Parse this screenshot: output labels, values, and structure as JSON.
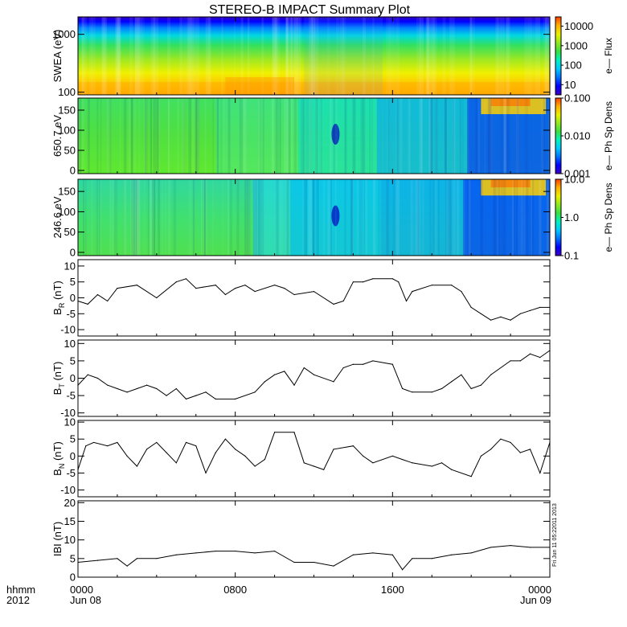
{
  "title": "STEREO-B IMPACT Summary Plot",
  "time_axis": {
    "row1_label": "hhmm",
    "row2_label": "2012",
    "ticks": [
      {
        "hour": 0,
        "label": "0000",
        "sub": "Jun 08"
      },
      {
        "hour": 8,
        "label": "0800",
        "sub": ""
      },
      {
        "hour": 16,
        "label": "1600",
        "sub": ""
      },
      {
        "hour": 24,
        "label": "0000",
        "sub": "Jun 09"
      }
    ],
    "range_hours": [
      0,
      24
    ]
  },
  "side_stamp": "Fri Jun 11 05:22011 2013",
  "colors": {
    "colormap": [
      "#3c00c8",
      "#0000ff",
      "#0070ff",
      "#00c8ff",
      "#00f0c0",
      "#38e040",
      "#90e820",
      "#e8f000",
      "#ffb000",
      "#ff4000"
    ]
  },
  "chart_data": [
    {
      "type": "heatmap",
      "ylabel": "SWEA (eV)",
      "y_scale": "log",
      "ylim": [
        90,
        2000
      ],
      "yticks": [
        {
          "v": 100,
          "label": "100"
        },
        {
          "v": 1000,
          "label": "1000"
        }
      ],
      "colorbar_label": "e— Flux",
      "colorbar_scale": "log",
      "colorbar_range": [
        3,
        30000
      ],
      "colorbar_ticks": [
        {
          "v": 10,
          "label": "10"
        },
        {
          "v": 100,
          "label": "100"
        },
        {
          "v": 1000,
          "label": "1000"
        },
        {
          "v": 10000,
          "label": "10000"
        }
      ]
    },
    {
      "type": "heatmap",
      "ylabel": "650.7 eV",
      "ylim": [
        -8,
        180
      ],
      "yticks": [
        {
          "v": 0,
          "label": "0"
        },
        {
          "v": 50,
          "label": "50"
        },
        {
          "v": 100,
          "label": "100"
        },
        {
          "v": 150,
          "label": "150"
        }
      ],
      "colorbar_label": "e— Ph Sp Dens",
      "colorbar_scale": "log",
      "colorbar_range": [
        0.001,
        0.1
      ],
      "colorbar_ticks": [
        {
          "v": 0.001,
          "label": "0.001"
        },
        {
          "v": 0.01,
          "label": "0.010"
        },
        {
          "v": 0.1,
          "label": "0.100"
        }
      ]
    },
    {
      "type": "heatmap",
      "ylabel": "246.6 eV",
      "ylim": [
        -8,
        180
      ],
      "yticks": [
        {
          "v": 0,
          "label": "0"
        },
        {
          "v": 50,
          "label": "50"
        },
        {
          "v": 100,
          "label": "100"
        },
        {
          "v": 150,
          "label": "150"
        }
      ],
      "colorbar_label": "e— Ph Sp Dens",
      "colorbar_scale": "log",
      "colorbar_range": [
        0.1,
        10
      ],
      "colorbar_ticks": [
        {
          "v": 0.1,
          "label": "0.1"
        },
        {
          "v": 1,
          "label": "1.0"
        },
        {
          "v": 10,
          "label": "10.0"
        }
      ]
    },
    {
      "type": "line",
      "ylabel_main": "B",
      "ylabel_sub": "R",
      "ylabel_unit": " (nT)",
      "ylim": [
        -12,
        12
      ],
      "yticks": [
        {
          "v": -10,
          "label": "-10"
        },
        {
          "v": -5,
          "label": "-5"
        },
        {
          "v": 0,
          "label": "0"
        },
        {
          "v": 5,
          "label": "5"
        },
        {
          "v": 10,
          "label": "10"
        }
      ],
      "x": [
        0,
        0.5,
        1,
        1.5,
        2,
        3,
        4,
        5,
        5.5,
        6,
        7,
        7.5,
        8,
        8.5,
        9,
        10,
        10.5,
        11,
        12,
        13,
        13.5,
        14,
        14.5,
        15,
        16,
        16.3,
        16.7,
        17,
        18,
        19,
        19.5,
        20,
        20.5,
        21,
        21.5,
        22,
        22.5,
        23,
        23.5,
        24
      ],
      "y": [
        -1,
        -2,
        1,
        -1,
        3,
        4,
        0,
        5,
        6,
        3,
        4,
        1,
        3,
        4,
        2,
        4,
        3,
        1,
        2,
        -2,
        -1,
        5,
        5,
        6,
        6,
        5,
        -1,
        2,
        4,
        4,
        2,
        -3,
        -5,
        -7,
        -6,
        -7,
        -5,
        -4,
        -3,
        -3
      ]
    },
    {
      "type": "line",
      "ylabel_main": "B",
      "ylabel_sub": "T",
      "ylabel_unit": " (nT)",
      "ylim": [
        -11,
        11
      ],
      "yticks": [
        {
          "v": -10,
          "label": "-10"
        },
        {
          "v": -5,
          "label": "-5"
        },
        {
          "v": 0,
          "label": "0"
        },
        {
          "v": 5,
          "label": "5"
        },
        {
          "v": 10,
          "label": "10"
        }
      ],
      "x": [
        0,
        0.5,
        1,
        1.5,
        2,
        2.5,
        3,
        3.5,
        4,
        4.5,
        5,
        5.5,
        6,
        6.5,
        7,
        8,
        9,
        9.5,
        10,
        10.5,
        11,
        11.5,
        12,
        13,
        13.5,
        14,
        14.5,
        15,
        16,
        16.5,
        17,
        18,
        18.5,
        19,
        19.5,
        20,
        20.5,
        21,
        22,
        22.5,
        23,
        23.5,
        24
      ],
      "y": [
        -2,
        1,
        0,
        -2,
        -3,
        -4,
        -3,
        -2,
        -3,
        -5,
        -3,
        -6,
        -5,
        -4,
        -6,
        -6,
        -4,
        -1,
        1,
        2,
        -2,
        3,
        1,
        -1,
        3,
        4,
        4,
        5,
        4,
        -3,
        -4,
        -4,
        -3,
        -1,
        1,
        -3,
        -2,
        1,
        5,
        5,
        7,
        6,
        8
      ]
    },
    {
      "type": "line",
      "ylabel_main": "B",
      "ylabel_sub": "N",
      "ylabel_unit": " (nT)",
      "ylim": [
        -12,
        10.5
      ],
      "yticks": [
        {
          "v": -10,
          "label": "-10"
        },
        {
          "v": -5,
          "label": "-5"
        },
        {
          "v": 0,
          "label": "0"
        },
        {
          "v": 5,
          "label": "5"
        },
        {
          "v": 10,
          "label": "10"
        }
      ],
      "x": [
        0,
        0.4,
        0.8,
        1.5,
        2,
        2.5,
        3,
        3.5,
        4,
        4.5,
        5,
        5.5,
        6,
        6.5,
        7,
        7.5,
        8,
        8.5,
        9,
        9.5,
        10,
        11,
        11.5,
        12,
        12.5,
        13,
        14,
        14.5,
        15,
        16,
        16.5,
        17,
        18,
        18.5,
        19,
        20,
        20.5,
        21,
        21.5,
        22,
        22.5,
        23,
        23.5,
        24
      ],
      "y": [
        -4,
        3,
        4,
        3,
        4,
        0,
        -3,
        2,
        4,
        1,
        -2,
        4,
        3,
        -5,
        1,
        5,
        2,
        0,
        -3,
        -1,
        7,
        7,
        -2,
        -3,
        -4,
        2,
        3,
        0,
        -2,
        0,
        -1,
        -2,
        -3,
        -2,
        -4,
        -6,
        0,
        2,
        5,
        4,
        1,
        2,
        -5,
        4
      ]
    },
    {
      "type": "line",
      "ylabel": "IBI (nT)",
      "ylim": [
        0,
        20.5
      ],
      "yticks": [
        {
          "v": 0,
          "label": "0"
        },
        {
          "v": 5,
          "label": "5"
        },
        {
          "v": 10,
          "label": "10"
        },
        {
          "v": 15,
          "label": "15"
        },
        {
          "v": 20,
          "label": "20"
        }
      ],
      "x": [
        0,
        1,
        2,
        2.5,
        3,
        4,
        5,
        6,
        7,
        8,
        9,
        10,
        11,
        12,
        13,
        14,
        15,
        16,
        16.5,
        17,
        18,
        19,
        20,
        21,
        22,
        23,
        24
      ],
      "y": [
        4,
        4.5,
        5,
        3,
        5,
        5,
        6,
        6.5,
        7,
        7,
        6.5,
        7,
        4,
        4,
        3,
        6,
        6.5,
        6,
        2,
        5,
        5,
        6,
        6.5,
        8,
        8.5,
        8,
        8
      ]
    }
  ]
}
